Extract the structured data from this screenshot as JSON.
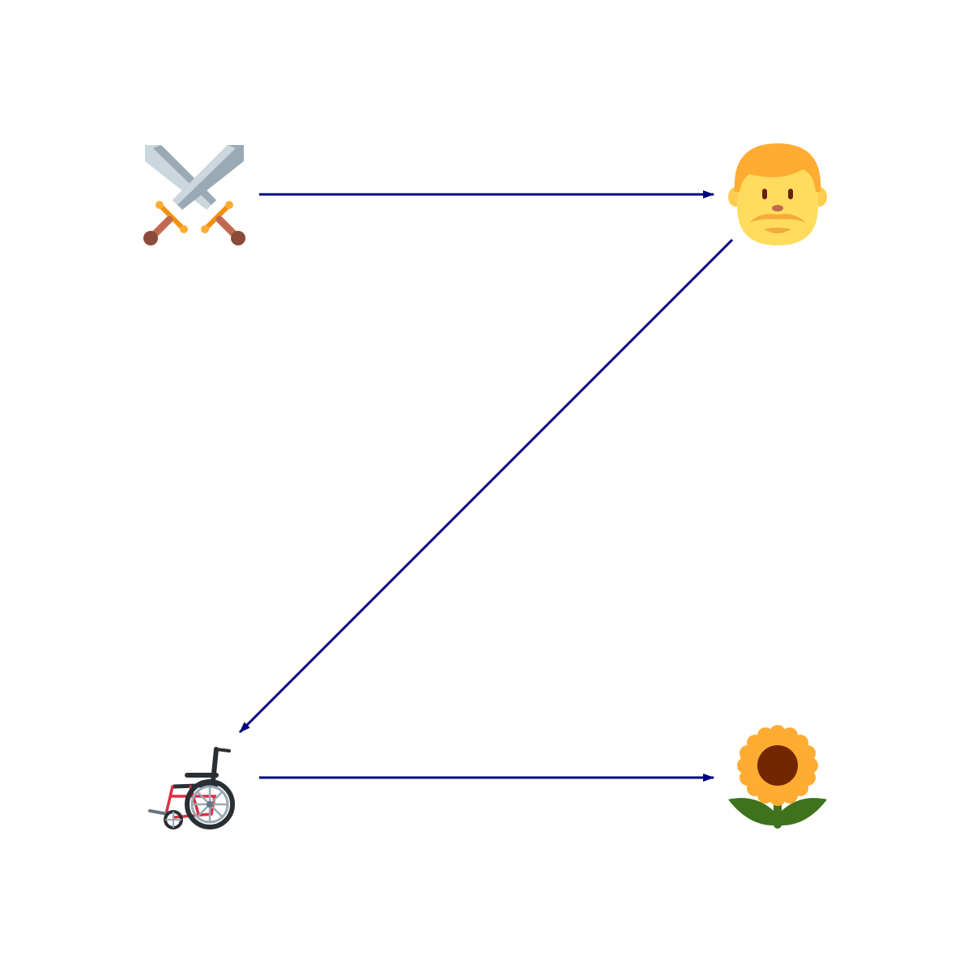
{
  "diagram": {
    "nodes": [
      {
        "id": "swords",
        "icon": "crossed-swords-icon"
      },
      {
        "id": "man",
        "icon": "man-face-icon"
      },
      {
        "id": "wheelchair",
        "icon": "manual-wheelchair-icon"
      },
      {
        "id": "sunflower",
        "icon": "sunflower-icon"
      }
    ],
    "edges": [
      {
        "from": "swords",
        "to": "man"
      },
      {
        "from": "man",
        "to": "wheelchair"
      },
      {
        "from": "wheelchair",
        "to": "sunflower"
      }
    ],
    "arrow_color": "#000080"
  }
}
